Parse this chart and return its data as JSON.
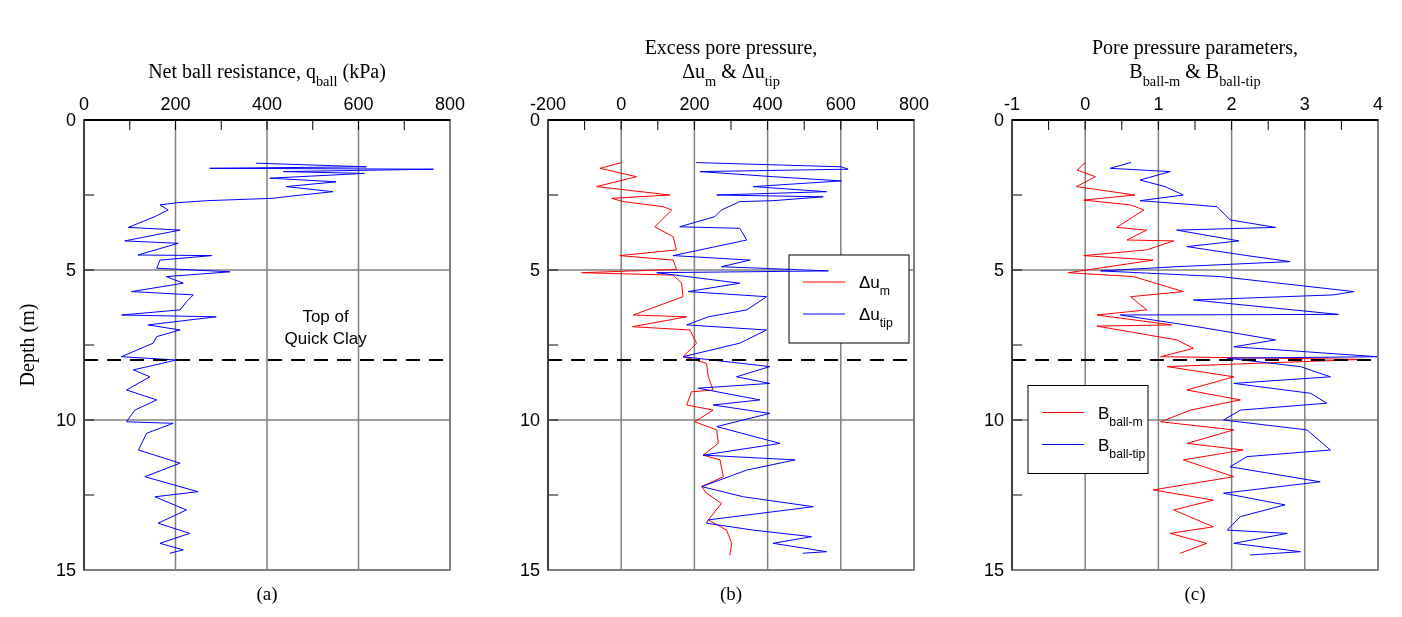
{
  "chart_data": [
    {
      "type": "line",
      "xlabel": "Net ball resistance, q$_{ball}$ (kPa)",
      "ylabel": "Depth (m)",
      "annotations": [
        "(a)"
      ],
      "xlim": [
        0,
        800
      ],
      "xticks": [
        0,
        {
          "value": 100,
          "label": null
        },
        200,
        {
          "value": 300,
          "label": null
        },
        400,
        {
          "value": 500,
          "label": null
        },
        600,
        {
          "value": 700,
          "label": null
        },
        800
      ],
      "ylim": [
        15,
        0
      ],
      "yticks": [
        0,
        {
          "value": 2.5,
          "label": null
        },
        5,
        {
          "value": 7.5,
          "label": null
        },
        10,
        {
          "value": 12.5,
          "label": null
        },
        15
      ],
      "grid": true,
      "legend": false,
      "ref_lines": [
        {
          "axis": "y",
          "value": 8,
          "label": "Top of\nQuick Clay",
          "color": "#000000",
          "line_style": "dashed"
        }
      ],
      "series": [
        {
          "color": "#0000ff",
          "x": [
            377,
            617,
            275,
            764,
            435,
            613,
            406,
            551,
            442,
            544,
            457,
            413,
            268,
            202,
            166,
            184,
            155,
            97,
            210,
            89,
            206,
            118,
            279,
            166,
            159,
            319,
            180,
            217,
            104,
            239,
            224,
            210,
            82,
            289,
            140,
            210,
            159,
            151,
            82,
            202,
            108,
            144,
            93,
            159,
            111,
            93,
            195,
            137,
            119,
            210,
            133,
            249,
            155,
            224,
            162,
            231,
            166,
            217,
            188
          ],
          "values": [
            1.44,
            1.56,
            1.61,
            1.64,
            1.72,
            1.78,
            1.94,
            2.06,
            2.22,
            2.39,
            2.53,
            2.61,
            2.69,
            2.76,
            2.83,
            3.0,
            3.22,
            3.58,
            3.67,
            4.03,
            4.11,
            4.5,
            4.52,
            4.67,
            4.94,
            5.06,
            5.22,
            5.44,
            5.72,
            5.83,
            6.06,
            6.33,
            6.5,
            6.56,
            6.83,
            7.0,
            7.22,
            7.44,
            7.89,
            8.0,
            8.33,
            8.56,
            9.0,
            9.33,
            9.67,
            10.06,
            10.11,
            10.44,
            11.0,
            11.44,
            11.89,
            12.39,
            12.56,
            13.0,
            13.44,
            13.78,
            14.11,
            14.33,
            14.44
          ]
        }
      ]
    },
    {
      "type": "line",
      "xlabel": "Excess pore pressure,\nΔu$_{m}$ & Δu$_{tip}$",
      "annotations": [
        "(b)"
      ],
      "xlim": [
        -200,
        800
      ],
      "xticks": [
        -200,
        {
          "value": -100,
          "label": null
        },
        0,
        {
          "value": 100,
          "label": null
        },
        200,
        {
          "value": 300,
          "label": null
        },
        400,
        {
          "value": 500,
          "label": null
        },
        600,
        {
          "value": 700,
          "label": null
        },
        800
      ],
      "ylim": [
        15,
        0
      ],
      "yticks": [
        0,
        {
          "value": 2.5,
          "label": null
        },
        5,
        {
          "value": 7.5,
          "label": null
        },
        10,
        {
          "value": 12.5,
          "label": null
        },
        15
      ],
      "grid": true,
      "legend": "right",
      "ref_lines": [
        {
          "axis": "y",
          "value": 8,
          "color": "#000000",
          "line_style": "dashed"
        }
      ],
      "series": [
        {
          "name": "Δu$_{m}$",
          "color": "#ff0000",
          "x": [
            1,
            -58,
            42,
            -67,
            133,
            -26,
            5,
            115,
            138,
            92,
            142,
            151,
            -4,
            142,
            151,
            -108,
            142,
            165,
            169,
            33,
            179,
            31,
            188,
            206,
            169,
            233,
            238,
            251,
            192,
            179,
            251,
            201,
            261,
            265,
            224,
            270,
            279,
            220,
            233,
            274,
            238,
            288,
            302,
            297
          ],
          "values": [
            1.42,
            1.61,
            1.89,
            2.22,
            2.5,
            2.61,
            2.72,
            2.89,
            3.0,
            3.56,
            3.89,
            4.33,
            4.52,
            4.67,
            4.98,
            5.09,
            5.17,
            5.44,
            5.89,
            6.5,
            6.56,
            6.89,
            7.0,
            7.44,
            7.89,
            8.11,
            8.56,
            9.0,
            9.06,
            9.5,
            9.67,
            10.06,
            10.33,
            10.78,
            11.17,
            11.33,
            11.89,
            12.22,
            12.44,
            12.78,
            13.33,
            13.67,
            14.11,
            14.5
          ]
        },
        {
          "name": "Δu$_{tip}$",
          "color": "#0000ff",
          "x": [
            206,
            602,
            620,
            215,
            415,
            602,
            361,
            561,
            261,
            552,
            415,
            324,
            274,
            256,
            160,
            324,
            343,
            142,
            352,
            274,
            566,
            97,
            324,
            183,
            397,
            343,
            238,
            179,
            397,
            324,
            169,
            406,
            315,
            406,
            210,
            379,
            251,
            406,
            261,
            434,
            224,
            475,
            343,
            220,
            334,
            525,
            238,
            233,
            361,
            520,
            415,
            561,
            497
          ],
          "values": [
            1.42,
            1.56,
            1.64,
            1.72,
            1.89,
            2.03,
            2.22,
            2.39,
            2.5,
            2.56,
            2.69,
            2.72,
            3.0,
            3.22,
            3.56,
            3.61,
            4.0,
            4.52,
            4.67,
            4.89,
            5.03,
            5.09,
            5.44,
            5.72,
            5.89,
            6.33,
            6.56,
            6.83,
            7.0,
            7.44,
            7.89,
            8.22,
            8.56,
            8.78,
            8.94,
            9.33,
            9.5,
            9.78,
            10.22,
            10.78,
            11.17,
            11.33,
            11.67,
            12.22,
            12.56,
            12.89,
            13.33,
            13.44,
            13.67,
            13.89,
            14.11,
            14.39,
            14.44
          ]
        }
      ]
    },
    {
      "type": "line",
      "xlabel": "Pore pressure parameters,\nB$_{ball-m}$ & B$_{ball-tip}$",
      "annotations": [
        "(c)"
      ],
      "xlim": [
        -1,
        4
      ],
      "xticks": [
        -1,
        {
          "value": -0.5,
          "label": null
        },
        0,
        {
          "value": 0.5,
          "label": null
        },
        1,
        {
          "value": 1.5,
          "label": null
        },
        2,
        {
          "value": 2.5,
          "label": null
        },
        3,
        {
          "value": 3.5,
          "label": null
        },
        4
      ],
      "ylim": [
        15,
        0
      ],
      "yticks": [
        0,
        {
          "value": 2.5,
          "label": null
        },
        5,
        {
          "value": 7.5,
          "label": null
        },
        10,
        {
          "value": 12.5,
          "label": null
        },
        15
      ],
      "grid": true,
      "legend": "left",
      "ref_lines": [
        {
          "axis": "y",
          "value": 8,
          "color": "#000000",
          "line_style": "dashed"
        }
      ],
      "series": [
        {
          "name": "B$_{ball-m}$",
          "color": "#ff0000",
          "x": [
            0,
            -0.11,
            0.14,
            -0.12,
            0.68,
            -0.02,
            0.62,
            0.8,
            0.43,
            0.84,
            0.57,
            1.21,
            0.84,
            -0.02,
            0.93,
            -0.23,
            0.66,
            1.34,
            0.62,
            0.84,
            0.16,
            1.18,
            0.16,
            1.25,
            1.48,
            1.03,
            3.8,
            1.12,
            2.03,
            1.39,
            2.12,
            1.44,
            1.03,
            2.03,
            1.39,
            2.16,
            1.34,
            2.03,
            0.93,
            1.75,
            1.21,
            1.75,
            1.16,
            1.66,
            1.3
          ],
          "values": [
            1.42,
            1.67,
            1.89,
            2.22,
            2.5,
            2.67,
            2.83,
            3.0,
            3.58,
            3.67,
            4.0,
            4.03,
            4.33,
            4.52,
            4.67,
            5.09,
            5.22,
            5.72,
            5.89,
            6.33,
            6.5,
            6.83,
            6.87,
            7.33,
            7.61,
            7.89,
            7.98,
            8.22,
            8.56,
            9.0,
            9.33,
            9.67,
            10.06,
            10.33,
            10.78,
            11.0,
            11.33,
            11.89,
            12.33,
            12.67,
            13.0,
            13.56,
            13.78,
            14.11,
            14.44
          ]
        },
        {
          "name": "B$_{ball-tip}$",
          "color": "#0000ff",
          "x": [
            0.62,
            0.34,
            1.16,
            0.75,
            1.09,
            1.34,
            0.75,
            1.25,
            1.8,
            1.98,
            2.6,
            1.25,
            2.1,
            1.39,
            2.21,
            2.8,
            1.25,
            0.21,
            1.85,
            3.67,
            3.39,
            1.48,
            3.46,
            0.48,
            1.53,
            2.6,
            2.03,
            3.99,
            1.94,
            2.94,
            3.35,
            2.03,
            3.08,
            3.3,
            2.12,
            1.89,
            3.03,
            3.35,
            2.21,
            1.98,
            3.21,
            1.89,
            2.73,
            2.12,
            1.94,
            2.76,
            2.03,
            2.94,
            2.26
          ],
          "values": [
            1.42,
            1.61,
            1.72,
            2.0,
            2.22,
            2.5,
            2.69,
            2.78,
            2.89,
            3.33,
            3.58,
            3.67,
            4.03,
            4.22,
            4.52,
            4.72,
            4.89,
            5.03,
            5.22,
            5.72,
            5.83,
            6.0,
            6.48,
            6.5,
            6.89,
            7.33,
            7.56,
            7.89,
            7.94,
            8.22,
            8.56,
            8.78,
            9.11,
            9.44,
            9.67,
            10.0,
            10.33,
            11.0,
            11.22,
            11.56,
            12.06,
            12.44,
            12.83,
            13.22,
            13.67,
            13.78,
            14.11,
            14.39,
            14.5
          ]
        }
      ]
    }
  ]
}
